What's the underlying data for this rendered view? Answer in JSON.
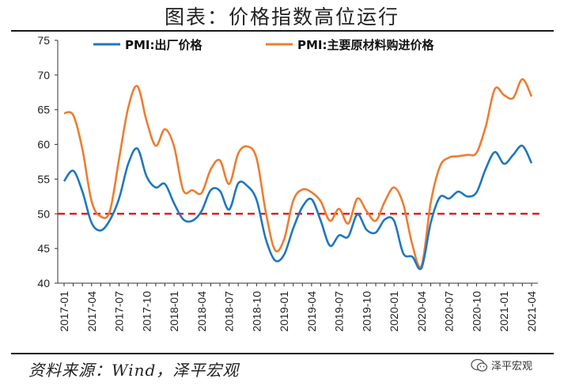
{
  "header": {
    "title": "图表：价格指数高位运行"
  },
  "footer": {
    "source": "资料来源：Wind，泽平宏观",
    "watermark": "泽平宏观"
  },
  "icons": {
    "watermark_icon": "wechat-bubble-icon"
  },
  "colors": {
    "series1": "#1f77c0",
    "series2": "#ed7d31",
    "reference": "#e02020"
  },
  "chart_data": {
    "type": "line",
    "title": "图表：价格指数高位运行",
    "ylim": [
      40,
      75
    ],
    "yticks": [
      40,
      45,
      50,
      55,
      60,
      65,
      70,
      75
    ],
    "xticks": [
      "2017-01",
      "2017-04",
      "2017-07",
      "2017-10",
      "2018-01",
      "2018-04",
      "2018-07",
      "2018-10",
      "2019-01",
      "2019-04",
      "2019-07",
      "2019-10",
      "2020-01",
      "2020-04",
      "2020-07",
      "2020-10",
      "2021-01",
      "2021-04"
    ],
    "x": [
      "2017-01",
      "2017-02",
      "2017-03",
      "2017-04",
      "2017-05",
      "2017-06",
      "2017-07",
      "2017-08",
      "2017-09",
      "2017-10",
      "2017-11",
      "2017-12",
      "2018-01",
      "2018-02",
      "2018-03",
      "2018-04",
      "2018-05",
      "2018-06",
      "2018-07",
      "2018-08",
      "2018-09",
      "2018-10",
      "2018-11",
      "2018-12",
      "2019-01",
      "2019-02",
      "2019-03",
      "2019-04",
      "2019-05",
      "2019-06",
      "2019-07",
      "2019-08",
      "2019-09",
      "2019-10",
      "2019-11",
      "2019-12",
      "2020-01",
      "2020-02",
      "2020-03",
      "2020-04",
      "2020-05",
      "2020-06",
      "2020-07",
      "2020-08",
      "2020-09",
      "2020-10",
      "2020-11",
      "2020-12",
      "2021-01",
      "2021-02",
      "2021-03",
      "2021-04"
    ],
    "series": [
      {
        "name": "PMI:出厂价格",
        "values": [
          54.7,
          56.2,
          53.2,
          48.7,
          47.6,
          49.1,
          52.2,
          57.2,
          59.4,
          55.4,
          53.8,
          54.3,
          51.5,
          49.2,
          49.0,
          50.4,
          53.4,
          53.3,
          50.6,
          54.4,
          54.0,
          52.0,
          46.4,
          43.3,
          44.1,
          47.9,
          51.0,
          52.1,
          49.0,
          45.4,
          46.9,
          46.7,
          49.9,
          47.7,
          47.3,
          49.2,
          49.0,
          44.3,
          43.8,
          42.2,
          48.7,
          52.4,
          52.2,
          53.2,
          52.5,
          53.1,
          56.5,
          58.9,
          57.2,
          58.5,
          59.8,
          57.3
        ]
      },
      {
        "name": "PMI:主要原材料购进价格",
        "values": [
          64.5,
          64.2,
          59.3,
          51.8,
          49.6,
          50.4,
          57.9,
          65.3,
          68.4,
          63.4,
          59.8,
          62.2,
          59.7,
          53.4,
          53.4,
          53.0,
          56.4,
          57.7,
          54.3,
          58.7,
          59.7,
          58.0,
          50.3,
          44.8,
          46.3,
          51.9,
          53.5,
          53.1,
          51.8,
          49.0,
          50.7,
          48.6,
          52.2,
          50.4,
          49.0,
          51.8,
          53.8,
          51.4,
          45.5,
          42.5,
          51.6,
          56.8,
          58.1,
          58.3,
          58.5,
          58.8,
          62.6,
          68.0,
          67.1,
          66.7,
          69.4,
          66.9
        ]
      }
    ],
    "reference_line": 50,
    "legend": "top"
  }
}
